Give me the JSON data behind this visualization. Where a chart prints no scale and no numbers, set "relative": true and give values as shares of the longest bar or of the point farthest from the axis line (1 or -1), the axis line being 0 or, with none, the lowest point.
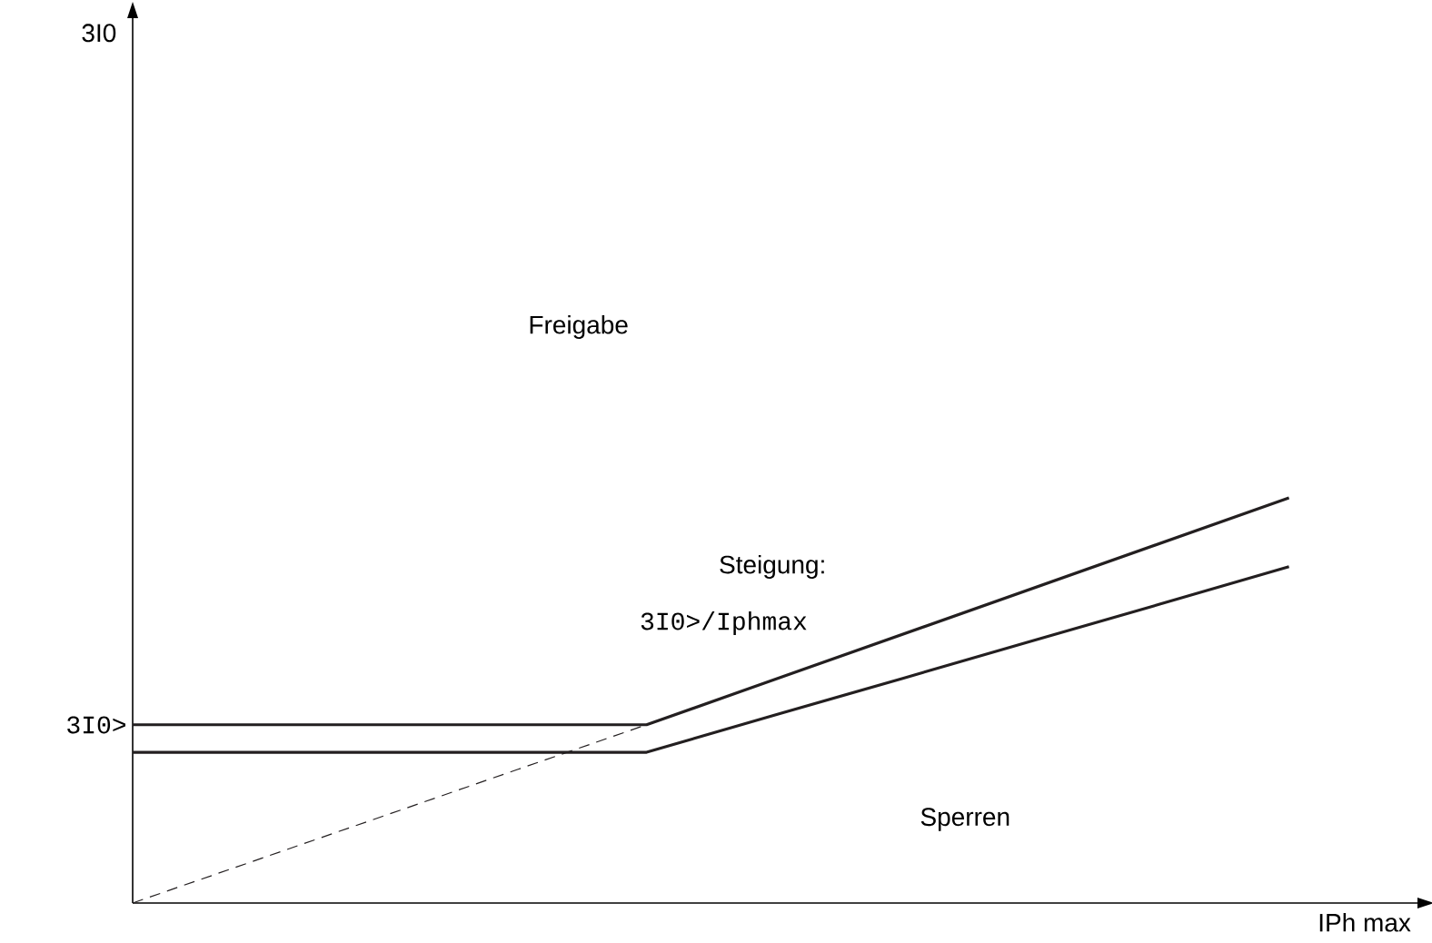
{
  "chart_data": {
    "type": "line",
    "relative": true,
    "xlabel": "IPh max",
    "categories": [
      null,
      null,
      null,
      null,
      null,
      null,
      null,
      null,
      null,
      null,
      null
    ],
    "series": [
      {
        "color": "#231f20",
        "values": [
          0.44,
          0.44,
          0.44,
          0.44,
          0.44,
          0.552,
          0.664,
          0.776,
          0.888,
          1,
          null
        ],
        "line_style": "solid"
      },
      {
        "color": "#231f20",
        "values": [
          0.372,
          0.372,
          0.372,
          0.372,
          0.372,
          0.464,
          0.555,
          0.647,
          0.738,
          0.83,
          null
        ],
        "line_style": "solid"
      },
      {
        "color": "#231f20",
        "values": [
          0,
          0.11,
          0.22,
          0.33,
          0.44,
          null,
          null,
          null,
          null,
          null,
          null
        ],
        "line_style": "dashed"
      }
    ],
    "annotations": [
      "3I0",
      "3I0>",
      "Freigabe",
      "Steigung:",
      "3I0>/Iphmax",
      "Sperren"
    ]
  }
}
